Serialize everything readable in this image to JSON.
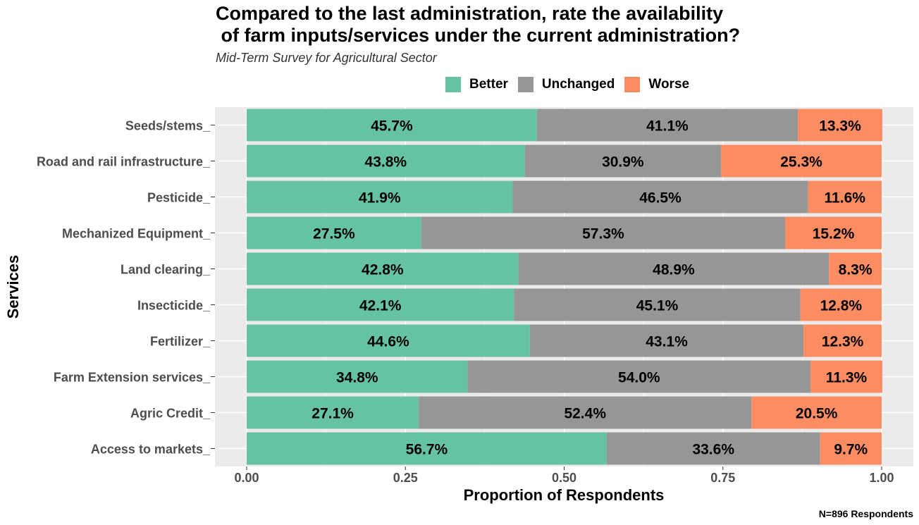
{
  "chart_data": {
    "type": "bar",
    "orientation": "horizontal",
    "stacked": true,
    "title": "Compared to the last administration, rate the availability\n of farm inputs/services under the current administration?",
    "subtitle": "Mid-Term Survey for Agricultural Sector",
    "xlabel": "Proportion of Respondents",
    "ylabel": "Services",
    "xlim": [
      0,
      1
    ],
    "x_ticks": [
      "0.00",
      "0.25",
      "0.50",
      "0.75",
      "1.00"
    ],
    "x_tick_values": [
      0,
      0.25,
      0.5,
      0.75,
      1.0
    ],
    "grid": true,
    "legend_position": "top",
    "categories": [
      "Seeds/stems_",
      "Road and rail infrastructure_",
      "Pesticide_",
      "Mechanized Equipment_",
      "Land clearing_",
      "Insecticide_",
      "Fertilizer_",
      "Farm Extension services_",
      "Agric Credit_",
      "Access to markets_"
    ],
    "series": [
      {
        "name": "Better",
        "color": "#66c2a5",
        "values": [
          0.457,
          0.438,
          0.419,
          0.275,
          0.428,
          0.421,
          0.446,
          0.348,
          0.271,
          0.567
        ],
        "labels": [
          "45.7%",
          "43.8%",
          "41.9%",
          "27.5%",
          "42.8%",
          "42.1%",
          "44.6%",
          "34.8%",
          "27.1%",
          "56.7%"
        ]
      },
      {
        "name": "Unchanged",
        "color": "#969696",
        "values": [
          0.411,
          0.309,
          0.465,
          0.573,
          0.489,
          0.451,
          0.431,
          0.54,
          0.524,
          0.336
        ],
        "labels": [
          "41.1%",
          "30.9%",
          "46.5%",
          "57.3%",
          "48.9%",
          "45.1%",
          "43.1%",
          "54.0%",
          "52.4%",
          "33.6%"
        ]
      },
      {
        "name": "Worse",
        "color": "#fc8d62",
        "values": [
          0.133,
          0.253,
          0.116,
          0.152,
          0.083,
          0.128,
          0.123,
          0.113,
          0.205,
          0.097
        ],
        "labels": [
          "13.3%",
          "25.3%",
          "11.6%",
          "15.2%",
          "8.3%",
          "12.8%",
          "12.3%",
          "11.3%",
          "20.5%",
          "9.7%"
        ]
      }
    ],
    "note": "N=896 Respondents"
  }
}
